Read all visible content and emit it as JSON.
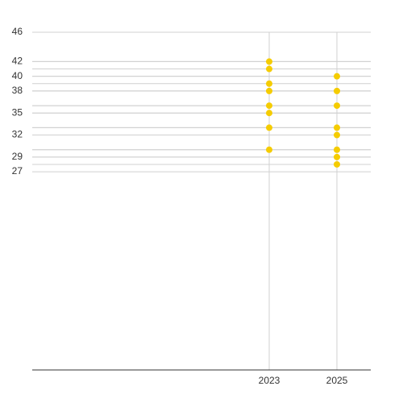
{
  "chart_data": {
    "type": "scatter",
    "x": [
      2023,
      2023,
      2023,
      2023,
      2023,
      2023,
      2023,
      2023,
      2025,
      2025,
      2025,
      2025,
      2025,
      2025,
      2025,
      2025
    ],
    "y": [
      42,
      41,
      39,
      38,
      36,
      35,
      33,
      30,
      40,
      38,
      36,
      33,
      32,
      30,
      29,
      28
    ],
    "color": "#f5cc00",
    "xlim": [
      2016,
      2026
    ],
    "xticks": [
      2023,
      2025
    ],
    "ylim": [
      0,
      46
    ],
    "yticks": [
      27,
      29,
      32,
      35,
      38,
      40,
      42,
      46
    ],
    "grid": true
  }
}
